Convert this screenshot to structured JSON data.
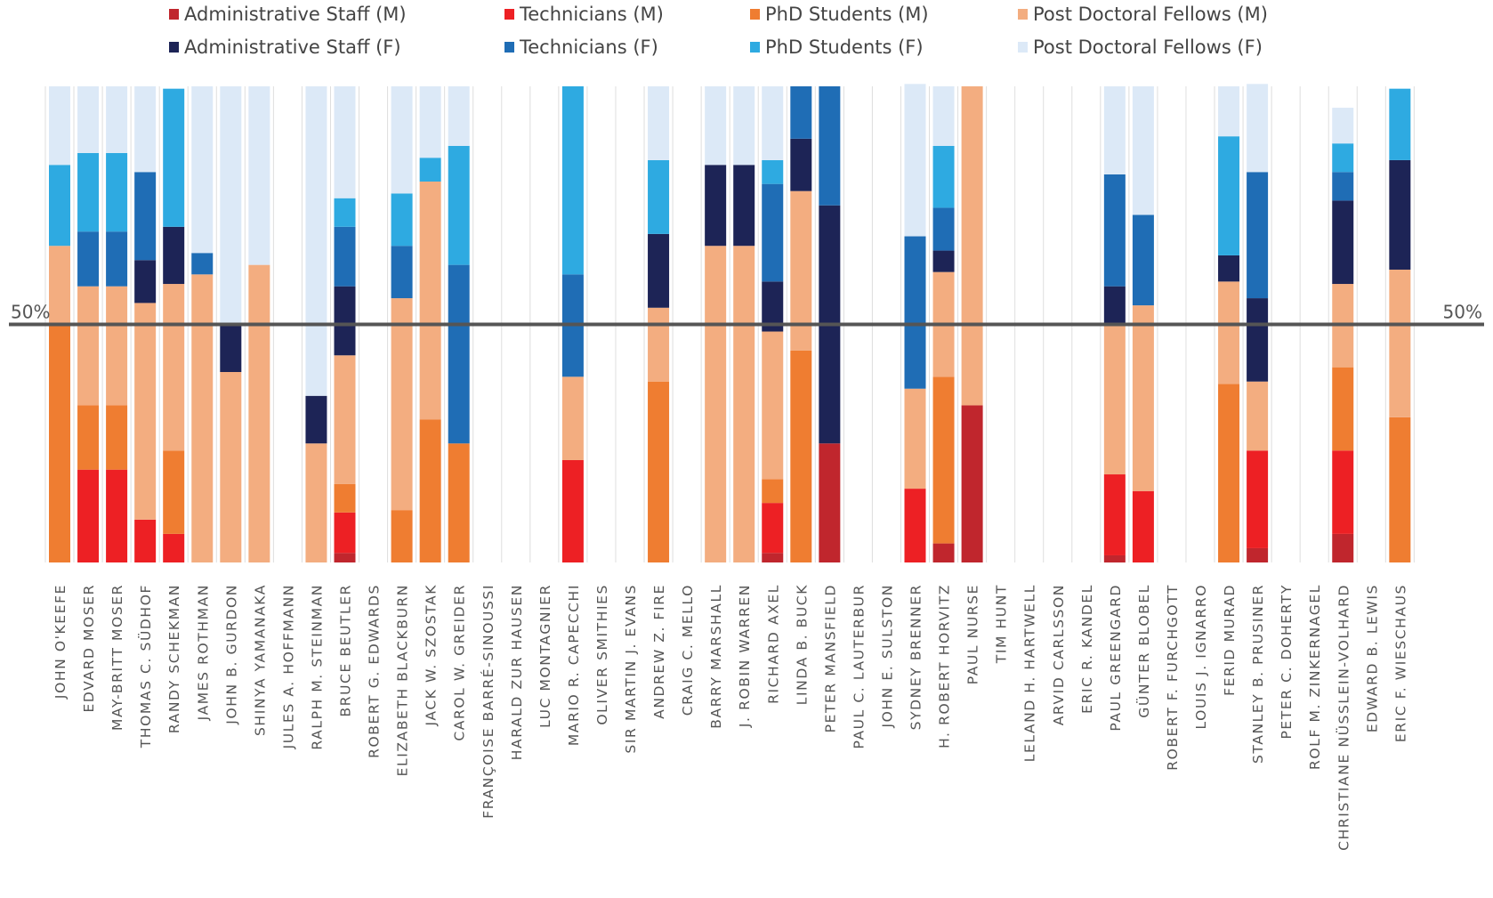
{
  "chart_data": {
    "type": "bar",
    "stacked": true,
    "normalized": true,
    "ylim": [
      0,
      100
    ],
    "grid": "vertical lines between bars",
    "legend_position": "top",
    "reference_line": {
      "value": 50,
      "left_label": "50%",
      "right_label": "50%"
    },
    "categories": [
      "JOHN O'KEEFE",
      "EDVARD MOSER",
      "MAY-BRITT MOSER",
      "THOMAS C. SÜDHOF",
      "RANDY SCHEKMAN",
      "JAMES ROTHMAN",
      "JOHN B. GURDON",
      "SHINYA YAMANAKA",
      "JULES A. HOFFMANN",
      "RALPH M. STEINMAN",
      "BRUCE BEUTLER",
      "ROBERT G. EDWARDS",
      "ELIZABETH BLACKBURN",
      "JACK W. SZOSTAK",
      "CAROL W. GREIDER",
      "FRANÇOISE BARRÉ-SINOUSSI",
      "HARALD ZUR HAUSEN",
      "LUC MONTAGNIER",
      "MARIO R. CAPECCHI",
      "OLIVER SMITHIES",
      "SIR MARTIN J. EVANS",
      "ANDREW Z. FIRE",
      "CRAIG C. MELLO",
      "BARRY MARSHALL",
      "J. ROBIN WARREN",
      "RICHARD AXEL",
      "LINDA B. BUCK",
      "PETER MANSFIELD",
      "PAUL C. LAUTERBUR",
      "JOHN E. SULSTON",
      "SYDNEY BRENNER",
      "H. ROBERT HORVITZ",
      "PAUL NURSE",
      "TIM HUNT",
      "LELAND H. HARTWELL",
      "ARVID CARLSSON",
      "ERIC R. KANDEL",
      "PAUL GREENGARD",
      "GÜNTER BLOBEL",
      "ROBERT F. FURCHGOTT",
      "LOUIS J. IGNARRO",
      "FERID MURAD",
      "STANLEY B. PRUSINER",
      "PETER C. DOHERTY",
      "ROLF M. ZINKERNAGEL",
      "CHRISTIANE NÜSSLEIN-VOLHARD",
      "EDWARD B. LEWIS",
      "ERIC F. WIESCHAUS"
    ],
    "series": [
      {
        "name": "Administrative Staff (M)",
        "color": "#c0262d",
        "values": [
          0,
          0,
          0,
          0,
          0,
          0,
          0,
          0,
          0,
          0,
          2,
          0,
          0,
          0,
          0,
          0,
          0,
          0,
          0,
          0,
          0,
          0,
          0,
          0,
          0,
          2,
          0,
          25,
          0,
          0,
          0,
          4,
          33,
          0,
          0,
          0,
          0,
          1.5,
          0,
          0,
          0,
          0,
          3,
          0,
          0,
          6,
          0,
          0
        ]
      },
      {
        "name": "Technicians (M)",
        "color": "#ed2024",
        "values": [
          0,
          19.5,
          19.5,
          9,
          6,
          0,
          0,
          0,
          0,
          0,
          8.5,
          0,
          0,
          0,
          0,
          0,
          0,
          0,
          21.5,
          0,
          0,
          0,
          0,
          0,
          0,
          10.5,
          0,
          0,
          0,
          0,
          15.5,
          0,
          0,
          0,
          0,
          0,
          0,
          17,
          15,
          0,
          0,
          0,
          20.5,
          0,
          0,
          17.5,
          0,
          0
        ]
      },
      {
        "name": "PhD Students (M)",
        "color": "#ef7d31",
        "values": [
          50,
          13.5,
          13.5,
          0,
          17.5,
          0,
          0,
          0,
          0,
          0,
          6,
          0,
          11,
          30,
          25,
          0,
          0,
          0,
          0,
          0,
          0,
          38,
          0,
          0,
          0,
          5,
          44.5,
          0,
          0,
          0,
          0,
          35,
          0,
          0,
          0,
          0,
          0,
          0,
          0,
          0,
          0,
          37.5,
          0,
          0,
          0,
          17.5,
          0,
          30.5
        ]
      },
      {
        "name": "Post Doctoral Fellows (M)",
        "color": "#f3ad80",
        "values": [
          16.5,
          25,
          25,
          45.5,
          35,
          60.5,
          40,
          62.5,
          0,
          25,
          27,
          0,
          44.5,
          50,
          0,
          0,
          0,
          0,
          17.5,
          0,
          0,
          15.5,
          0,
          66.5,
          66.5,
          31,
          33.5,
          0,
          0,
          0,
          21,
          22,
          67,
          0,
          0,
          0,
          0,
          31.5,
          39,
          0,
          0,
          21.5,
          14.5,
          0,
          0,
          17.5,
          0,
          31
        ]
      },
      {
        "name": "Administrative Staff (F)",
        "color": "#1d2456",
        "values": [
          0,
          0,
          0,
          9,
          12,
          0,
          10,
          0,
          0,
          10,
          14.5,
          0,
          0,
          0,
          0,
          0,
          0,
          0,
          0,
          0,
          0,
          15.5,
          0,
          17,
          17,
          10.5,
          11,
          50,
          0,
          0,
          0,
          4.5,
          0,
          0,
          0,
          0,
          0,
          8,
          0,
          0,
          0,
          5.5,
          17.5,
          0,
          0,
          17.5,
          0,
          23
        ]
      },
      {
        "name": "Technicians (F)",
        "color": "#1f6db5",
        "values": [
          0,
          11.5,
          11.5,
          18.5,
          0,
          4.5,
          0,
          0,
          0,
          0,
          12.5,
          0,
          11,
          0,
          37.5,
          0,
          0,
          0,
          21.5,
          0,
          0,
          0,
          0,
          0,
          0,
          20.5,
          11,
          25,
          0,
          0,
          32,
          9,
          0,
          0,
          0,
          0,
          0,
          23.5,
          19,
          0,
          0,
          0,
          26.5,
          0,
          0,
          6,
          0,
          0
        ]
      },
      {
        "name": "PhD Students (F)",
        "color": "#2eaae1",
        "values": [
          17,
          16.5,
          16.5,
          0,
          29,
          0,
          0,
          0,
          0,
          0,
          6,
          0,
          11,
          5,
          25,
          0,
          0,
          0,
          39.5,
          0,
          0,
          15.5,
          0,
          0,
          0,
          5,
          0,
          0,
          0,
          0,
          0,
          13,
          0,
          0,
          0,
          0,
          0,
          0,
          0,
          0,
          0,
          25,
          0,
          0,
          0,
          6,
          0,
          15
        ]
      },
      {
        "name": "Post Doctoral Fellows (F)",
        "color": "#dce9f7",
        "values": [
          16.5,
          14,
          14,
          18,
          0,
          35,
          50,
          37.5,
          0,
          65,
          23.5,
          0,
          22.5,
          15,
          12.5,
          0,
          0,
          0,
          0,
          0,
          0,
          15.5,
          0,
          16.5,
          16.5,
          15.5,
          0,
          0,
          0,
          0,
          32,
          12.5,
          0,
          0,
          0,
          0,
          0,
          18.5,
          27,
          0,
          0,
          10.5,
          18.5,
          0,
          0,
          7.5,
          0,
          0
        ]
      }
    ]
  }
}
